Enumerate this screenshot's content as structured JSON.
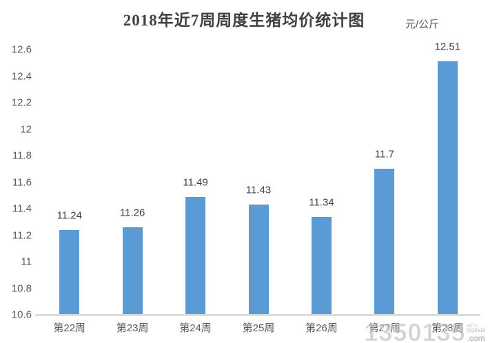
{
  "title": "2018年近7周周度生猪均价统计图",
  "unit_label": "元/公斤",
  "watermark": {
    "big": "1350135",
    "beta": "BETA",
    "small": "QQ8518",
    "com": ".com"
  },
  "colors": {
    "bar": "#5B9BD5",
    "title_text": "#404040",
    "axis_text": "#595959",
    "data_label_text": "#404040",
    "axis_line": "#DCDCDC"
  },
  "chart_data": {
    "type": "bar",
    "categories": [
      "第22周",
      "第23周",
      "第24周",
      "第25周",
      "第26周",
      "第27周",
      "第28周"
    ],
    "values": [
      11.24,
      11.26,
      11.49,
      11.43,
      11.34,
      11.7,
      12.51
    ],
    "data_labels": [
      "11.24",
      "11.26",
      "11.49",
      "11.43",
      "11.34",
      "11.7",
      "12.51"
    ],
    "title": "2018年近7周周度生猪均价统计图",
    "xlabel": "",
    "ylabel": "元/公斤",
    "ylim": [
      10.6,
      12.6
    ],
    "ytick_step": 0.2,
    "ytick_labels": [
      "12.6",
      "12.4",
      "12.2",
      "12",
      "11.8",
      "11.6",
      "11.4",
      "11.2",
      "11",
      "10.8",
      "10.6"
    ],
    "grid": false,
    "legend": "none"
  }
}
